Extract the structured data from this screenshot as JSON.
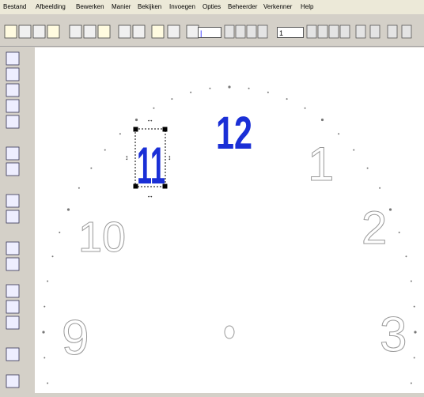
{
  "menu": [
    "Bestand",
    "Afbeelding",
    "Bewerken",
    "Manier",
    "Bekijken",
    "Invoegen",
    "Opties",
    "Beheerder",
    "Verkenner",
    "Help"
  ],
  "toolbar": {
    "field_2": "1"
  },
  "canvas": {
    "numerals": [
      "12",
      "11",
      "1",
      "2",
      "10",
      "9",
      "3"
    ]
  }
}
